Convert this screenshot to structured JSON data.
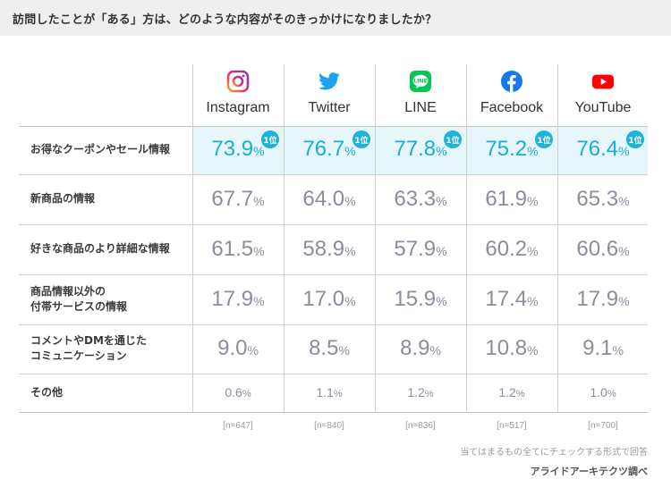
{
  "title": "訪問したことが「ある」方は、どのような内容がそのきっかけになりましたか？",
  "chart_data": {
    "type": "table",
    "title": "訪問したことが「ある」方は、どのような内容がそのきっかけになりましたか？",
    "columns": [
      {
        "name": "Instagram",
        "icon": "instagram-icon",
        "n": "[n=647]"
      },
      {
        "name": "Twitter",
        "icon": "twitter-icon",
        "n": "[n=840]"
      },
      {
        "name": "LINE",
        "icon": "line-icon",
        "n": "[n=836]"
      },
      {
        "name": "Facebook",
        "icon": "facebook-icon",
        "n": "[n=517]"
      },
      {
        "name": "YouTube",
        "icon": "youtube-icon",
        "n": "[n=700]"
      }
    ],
    "rows": [
      {
        "label": [
          "お得なクーポンやセール情報"
        ],
        "values": [
          "73.9",
          "76.7",
          "77.8",
          "75.2",
          "76.4"
        ],
        "highlight": true,
        "badge": "1位"
      },
      {
        "label": [
          "新商品の情報"
        ],
        "values": [
          "67.7",
          "64.0",
          "63.3",
          "61.9",
          "65.3"
        ]
      },
      {
        "label": [
          "好きな商品のより詳細な情報"
        ],
        "values": [
          "61.5",
          "58.9",
          "57.9",
          "60.2",
          "60.6"
        ]
      },
      {
        "label": [
          "商品情報以外の",
          "付帯サービスの情報"
        ],
        "values": [
          "17.9",
          "17.0",
          "15.9",
          "17.4",
          "17.9"
        ]
      },
      {
        "label": [
          "コメントやDMを通じた",
          "コミュニケーション"
        ],
        "values": [
          "9.0",
          "8.5",
          "8.9",
          "10.8",
          "9.1"
        ]
      },
      {
        "label": [
          "その他"
        ],
        "values": [
          "0.6",
          "1.1",
          "1.2",
          "1.2",
          "1.0"
        ],
        "small": true
      }
    ],
    "unit": "%",
    "colors": {
      "highlight_text": "#18aed7",
      "highlight_bg": "#e6f6fb",
      "badge": "#1fb3da",
      "value_text": "#8c8c9e"
    }
  },
  "footnote": "当てはまるもの全てにチェックする形式で回答",
  "source": "アライドアーキテクツ調べ"
}
